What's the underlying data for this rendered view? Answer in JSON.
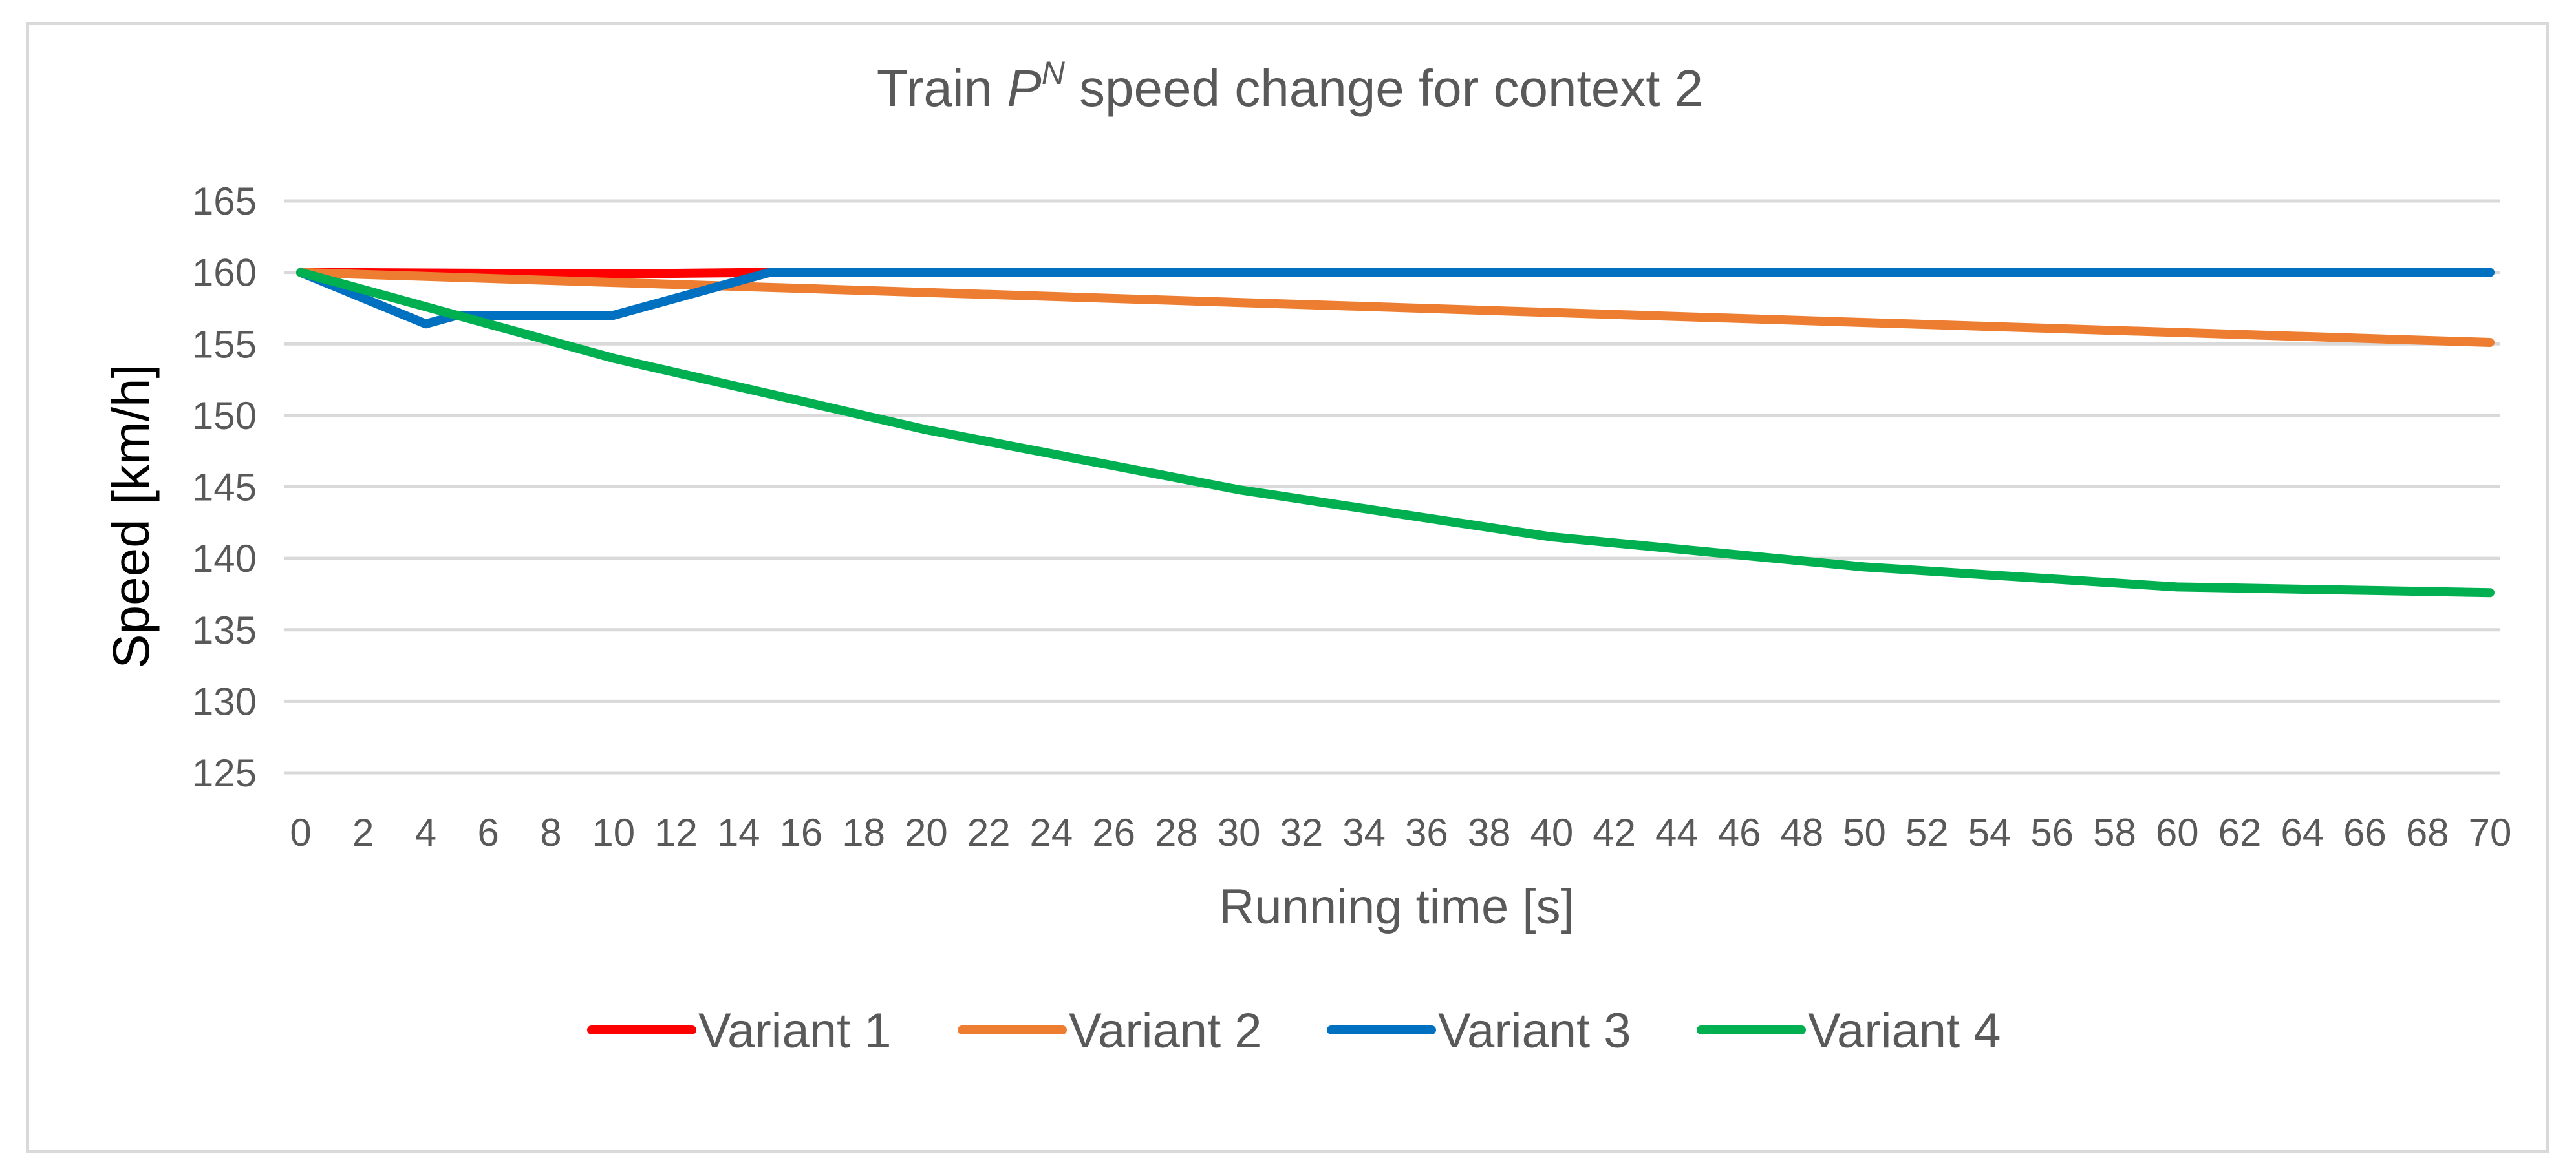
{
  "chart_data": {
    "type": "line",
    "title": {
      "prefix": "Train ",
      "symbol": "P",
      "superscript": "N",
      "suffix": " speed change for context  2"
    },
    "xlabel": "Running time [s]",
    "ylabel": "Speed [km/h]",
    "xlim": [
      0,
      70
    ],
    "ylim": [
      125,
      165
    ],
    "x_ticks": [
      0,
      2,
      4,
      6,
      8,
      10,
      12,
      14,
      16,
      18,
      20,
      22,
      24,
      26,
      28,
      30,
      32,
      34,
      36,
      38,
      40,
      42,
      44,
      46,
      48,
      50,
      52,
      54,
      56,
      58,
      60,
      62,
      64,
      66,
      68,
      70
    ],
    "y_ticks": [
      125,
      130,
      135,
      140,
      145,
      150,
      155,
      160,
      165
    ],
    "grid": true,
    "legend_position": "bottom",
    "series": [
      {
        "name": "Variant 1",
        "color": "#ff0000",
        "x": [
          0,
          10,
          15
        ],
        "y": [
          160,
          159.9,
          160
        ]
      },
      {
        "name": "Variant 2",
        "color": "#ed7d31",
        "x": [
          0,
          10,
          20,
          30,
          40,
          50,
          60,
          70
        ],
        "y": [
          160,
          159.3,
          158.6,
          157.9,
          157.2,
          156.5,
          155.8,
          155.1
        ]
      },
      {
        "name": "Variant 3",
        "color": "#0070c0",
        "x": [
          0,
          4,
          5,
          10,
          15,
          70
        ],
        "y": [
          160,
          156.4,
          157,
          157,
          160,
          160
        ]
      },
      {
        "name": "Variant 4",
        "color": "#00b050",
        "x": [
          0,
          10,
          20,
          30,
          40,
          50,
          60,
          70
        ],
        "y": [
          160,
          154,
          149,
          144.8,
          141.5,
          139.4,
          138,
          137.6
        ]
      }
    ]
  }
}
